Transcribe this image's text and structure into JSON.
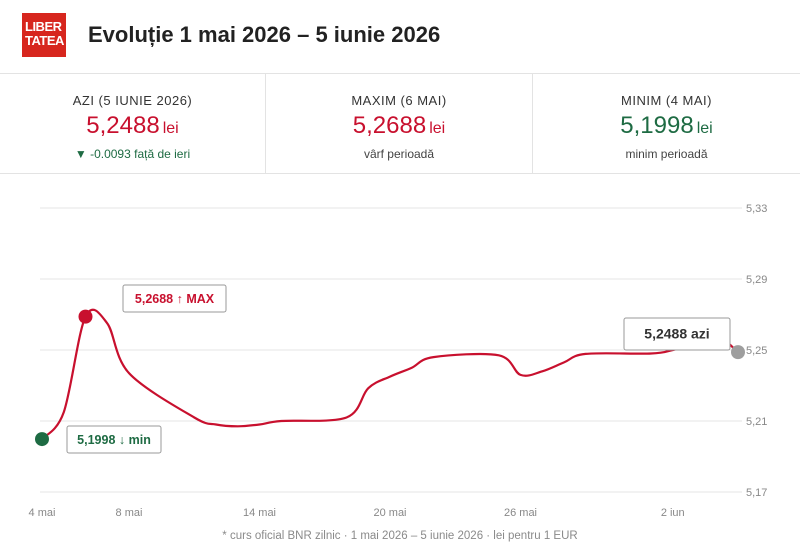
{
  "header": {
    "logo_line1": "LIBER",
    "logo_line2": "TATEA",
    "title": "Evoluție 1 mai 2026 – 5 iunie 2026"
  },
  "stats": [
    {
      "label": "AZI (5 IUNIE 2026)",
      "value": "5,2488",
      "unit": "lei",
      "sub": "▼ -0.0093 față de ieri"
    },
    {
      "label": "MAXIM (6 MAI)",
      "value": "5,2688",
      "unit": "lei",
      "sub": "vârf perioadă"
    },
    {
      "label": "MINIM (4 MAI)",
      "value": "5,1998",
      "unit": "lei",
      "sub": "minim perioadă"
    }
  ],
  "colors": {
    "line": "#c8102e",
    "min": "#1e6b43",
    "today": "#9e9e9e",
    "grid": "#e6e6e6"
  },
  "chart_data": {
    "type": "line",
    "x_tick_labels": [
      "4 mai",
      "8 mai",
      "14 mai",
      "20 mai",
      "26 mai",
      "2 iun"
    ],
    "y_tick_labels": [
      "5,33",
      "5,29",
      "5,25",
      "5,21",
      "5,17"
    ],
    "ylim": [
      5.17,
      5.33
    ],
    "grid": true,
    "series": [
      {
        "values": [
          {
            "x": "2026-05-04",
            "y": 5.1998
          },
          {
            "x": "2026-05-05",
            "y": 5.215
          },
          {
            "x": "2026-05-06",
            "y": 5.2688
          },
          {
            "x": "2026-05-07",
            "y": 5.265
          },
          {
            "x": "2026-05-08",
            "y": 5.237
          },
          {
            "x": "2026-05-11",
            "y": 5.212
          },
          {
            "x": "2026-05-12",
            "y": 5.208
          },
          {
            "x": "2026-05-13",
            "y": 5.207
          },
          {
            "x": "2026-05-14",
            "y": 5.208
          },
          {
            "x": "2026-05-15",
            "y": 5.21
          },
          {
            "x": "2026-05-18",
            "y": 5.212
          },
          {
            "x": "2026-05-19",
            "y": 5.2285
          },
          {
            "x": "2026-05-20",
            "y": 5.235
          },
          {
            "x": "2026-05-21",
            "y": 5.24
          },
          {
            "x": "2026-05-22",
            "y": 5.246
          },
          {
            "x": "2026-05-25",
            "y": 5.247
          },
          {
            "x": "2026-05-26",
            "y": 5.236
          },
          {
            "x": "2026-05-27",
            "y": 5.238
          },
          {
            "x": "2026-05-28",
            "y": 5.243
          },
          {
            "x": "2026-05-29",
            "y": 5.2478
          },
          {
            "x": "2026-06-01",
            "y": 5.248
          },
          {
            "x": "2026-06-02",
            "y": 5.25
          },
          {
            "x": "2026-06-03",
            "y": 5.2535
          },
          {
            "x": "2026-06-04",
            "y": 5.2581
          },
          {
            "x": "2026-06-05",
            "y": 5.2488
          }
        ]
      }
    ],
    "annotations": [
      {
        "text": "5,2688 ↑ MAX",
        "x": "2026-05-06",
        "y": 5.2688
      },
      {
        "text": "5,1998 ↓ min",
        "x": "2026-05-04",
        "y": 5.1998
      },
      {
        "text": "5,2488 azi",
        "x": "2026-06-05",
        "y": 5.2488
      }
    ]
  },
  "footnote": "* curs oficial BNR zilnic · 1 mai 2026 – 5 iunie 2026 · lei pentru 1 EUR"
}
